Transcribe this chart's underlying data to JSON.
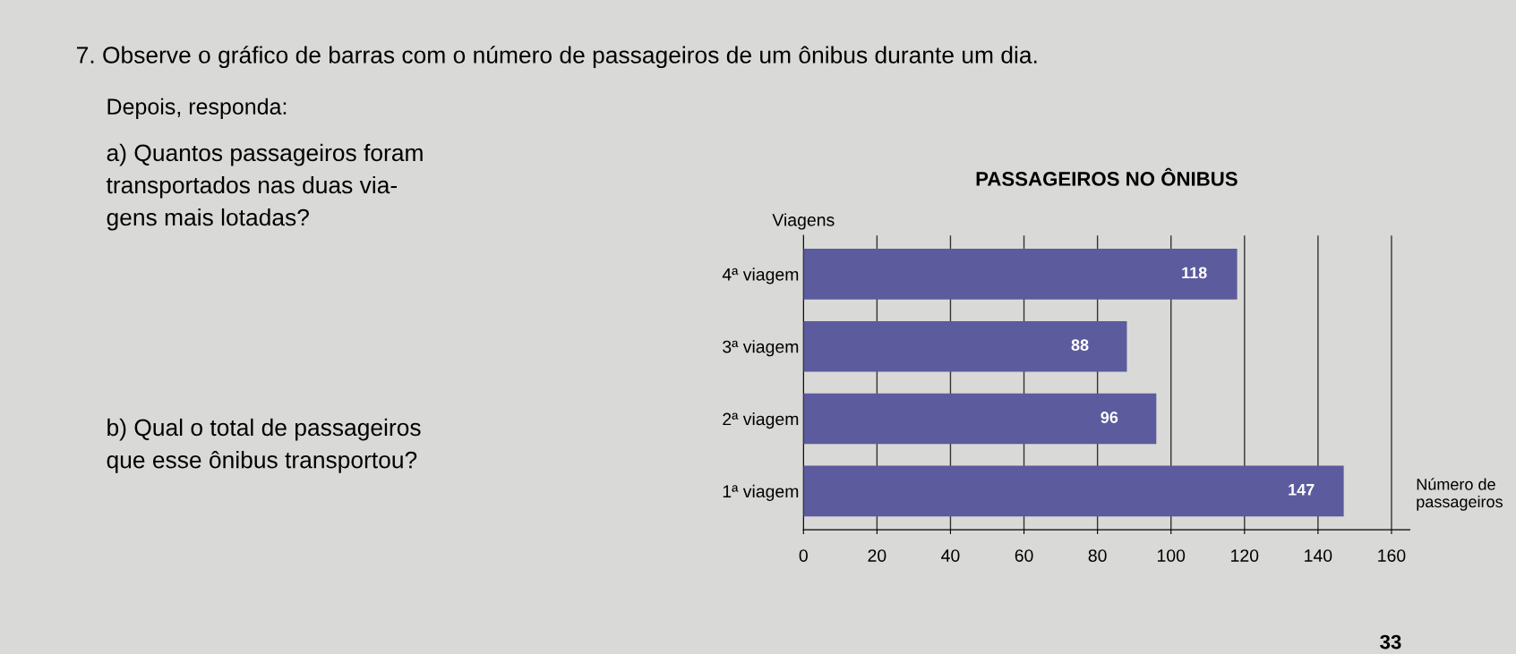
{
  "chart_data": {
    "type": "bar",
    "orientation": "horizontal",
    "title": "PASSAGEIROS NO ÔNIBUS",
    "ylabel": "Viagens",
    "xlabel": "Número de\npassageiros",
    "categories": [
      "4ª viagem",
      "3ª viagem",
      "2ª viagem",
      "1ª viagem"
    ],
    "values": [
      118,
      88,
      96,
      147
    ],
    "color": "#5b5b9e",
    "data_labels": true,
    "xlim": [
      0,
      165
    ],
    "xticks": [
      0,
      20,
      40,
      60,
      80,
      100,
      120,
      140,
      160
    ],
    "grid": "x",
    "annotations": [
      "7. Observe o gráfico de barras com o número de passageiros de um ônibus durante um dia.",
      "Depois, responda:",
      "a) Quantos passageiros foram\ntransportados nas duas via-\ngens mais lotadas?",
      "b) Qual o total de passageiros\nque esse ônibus transportou?",
      "33"
    ]
  }
}
